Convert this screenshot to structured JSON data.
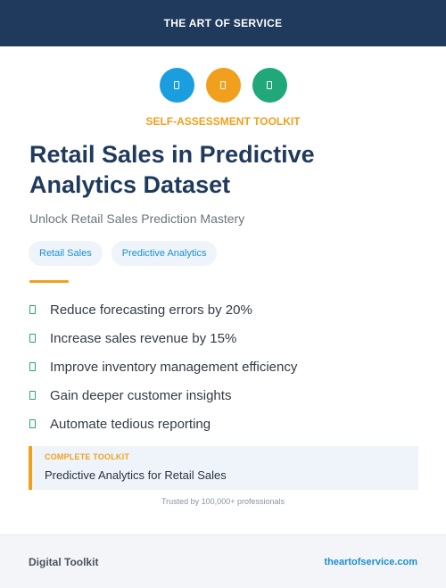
{
  "header": {
    "title": "THE ART OF SERVICE"
  },
  "icons": [
    {
      "name": "chart-icon",
      "color": "#1a9ee0"
    },
    {
      "name": "target-icon",
      "color": "#f0a01c"
    },
    {
      "name": "check-icon",
      "color": "#20a77a"
    }
  ],
  "kicker": {
    "text": "SELF-ASSESSMENT TOOLKIT",
    "color": "#f0a01c"
  },
  "title": "Retail Sales in Predictive Analytics Dataset",
  "subtitle": "Unlock Retail Sales Prediction Mastery",
  "tags": [
    "Retail Sales",
    "Predictive Analytics"
  ],
  "accent_color": "#f0a01c",
  "bullet_color": "#20a77a",
  "benefits": [
    "Reduce forecasting errors by 20%",
    "Increase sales revenue by 15%",
    "Improve inventory management efficiency",
    "Gain deeper customer insights",
    "Automate tedious reporting"
  ],
  "callout": {
    "label": "COMPLETE TOOLKIT",
    "text": "Predictive Analytics for Retail Sales"
  },
  "trust_text": "Trusted by 100,000+ professionals",
  "footer": {
    "label": "Digital Toolkit",
    "link": "theartofservice.com"
  }
}
